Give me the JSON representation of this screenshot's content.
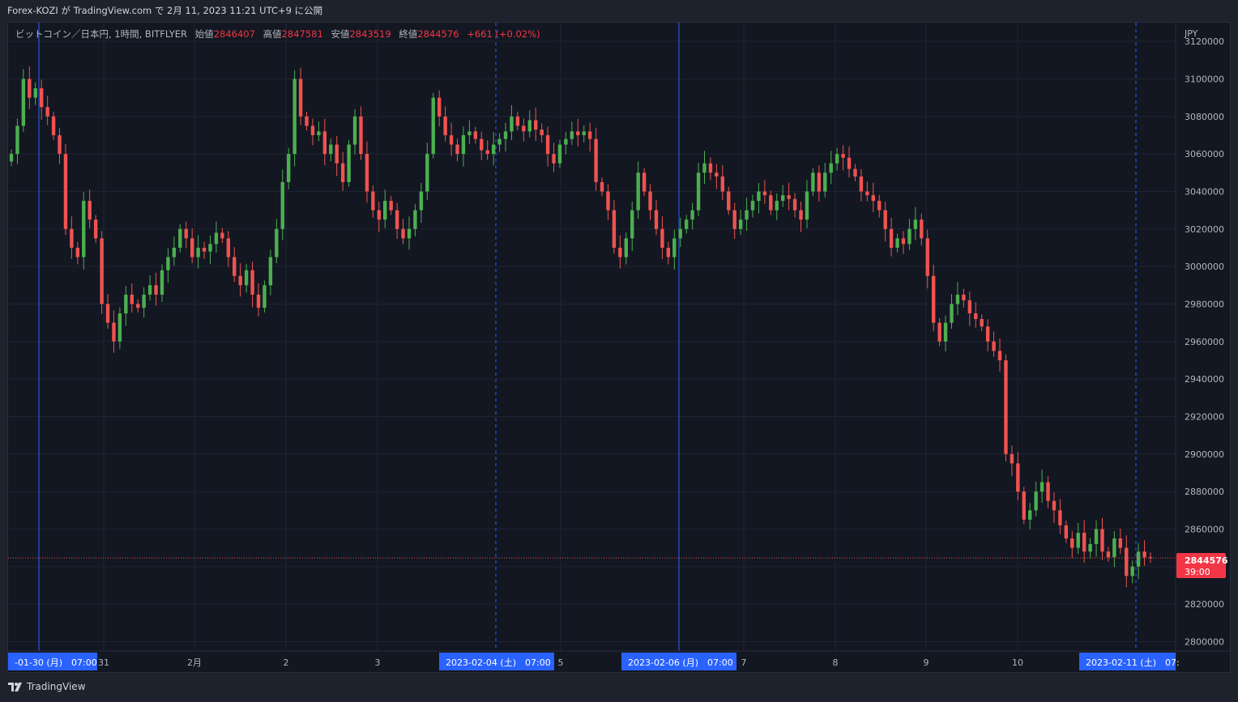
{
  "header": {
    "publish_text": "Forex-KOZI が TradingView.com で 2月 11, 2023 11:21 UTC+9 に公開"
  },
  "legend": {
    "symbol": "ビットコイン／日本円, 1時間, BITFLYER",
    "open_label": "始値",
    "open": "2846407",
    "high_label": "高値",
    "high": "2847581",
    "low_label": "安値",
    "low": "2843519",
    "close_label": "終値",
    "close": "2844576",
    "change": "+661 (+0.02%)"
  },
  "price_axis": {
    "currency": "JPY",
    "ticks": [
      "3120000",
      "3100000",
      "3080000",
      "3060000",
      "3040000",
      "3020000",
      "3000000",
      "2980000",
      "2960000",
      "2940000",
      "2920000",
      "2900000",
      "2880000",
      "2860000",
      "2840000",
      "2820000",
      "2800000"
    ],
    "last_price": "2844576",
    "countdown": "39:00"
  },
  "time_axis": {
    "labels": [
      "31",
      "2月",
      "2",
      "3",
      "5",
      "7",
      "8",
      "9",
      "10"
    ],
    "highlights": [
      "-01-30 (月)　07:00",
      "2023-02-04 (土)　07:00",
      "2023-02-06 (月)　07:00",
      "2023-02-11 (土)　07:"
    ]
  },
  "footer": {
    "brand": "TradingView"
  },
  "colors": {
    "up": "#26a69a",
    "up_body": "#4caf50",
    "down": "#ef5350",
    "background": "#131722",
    "grid": "#1f2433",
    "highlight": "#2962ff",
    "last_price_badge": "#f23645"
  },
  "chart_data": {
    "type": "candlestick",
    "interval": "1h",
    "ylim": [
      2795000,
      3130000
    ],
    "series_closes": [
      3060000,
      3075000,
      3100000,
      3090000,
      3095000,
      3085000,
      3080000,
      3070000,
      3060000,
      3020000,
      3010000,
      3005000,
      3035000,
      3025000,
      3015000,
      2980000,
      2970000,
      2960000,
      2975000,
      2985000,
      2980000,
      2978000,
      2985000,
      2990000,
      2985000,
      2998000,
      3005000,
      3010000,
      3020000,
      3015000,
      3005000,
      3010000,
      3008000,
      3012000,
      3018000,
      3015000,
      3005000,
      2995000,
      2990000,
      2998000,
      2985000,
      2978000,
      2990000,
      3005000,
      3020000,
      3045000,
      3060000,
      3100000,
      3080000,
      3075000,
      3070000,
      3072000,
      3060000,
      3065000,
      3055000,
      3045000,
      3065000,
      3080000,
      3060000,
      3040000,
      3030000,
      3025000,
      3035000,
      3030000,
      3020000,
      3015000,
      3020000,
      3030000,
      3040000,
      3060000,
      3090000,
      3080000,
      3070000,
      3065000,
      3060000,
      3070000,
      3072000,
      3068000,
      3062000,
      3060000,
      3065000,
      3068000,
      3072000,
      3080000,
      3075000,
      3072000,
      3078000,
      3073000,
      3070000,
      3060000,
      3055000,
      3065000,
      3068000,
      3072000,
      3070000,
      3072000,
      3068000,
      3045000,
      3040000,
      3030000,
      3010000,
      3005000,
      3015000,
      3030000,
      3050000,
      3040000,
      3030000,
      3020000,
      3010000,
      3005000,
      3015000,
      3020000,
      3025000,
      3030000,
      3050000,
      3055000,
      3050000,
      3048000,
      3040000,
      3030000,
      3020000,
      3025000,
      3030000,
      3035000,
      3040000,
      3038000,
      3030000,
      3035000,
      3038000,
      3036000,
      3030000,
      3025000,
      3040000,
      3050000,
      3040000,
      3050000,
      3055000,
      3060000,
      3058000,
      3052000,
      3048000,
      3040000,
      3038000,
      3035000,
      3030000,
      3020000,
      3010000,
      3015000,
      3012000,
      3020000,
      3025000,
      3015000,
      2995000,
      2970000,
      2960000,
      2970000,
      2980000,
      2985000,
      2982000,
      2975000,
      2972000,
      2968000,
      2960000,
      2955000,
      2950000,
      2900000,
      2895000,
      2880000,
      2865000,
      2870000,
      2880000,
      2885000,
      2875000,
      2870000,
      2862000,
      2855000,
      2850000,
      2858000,
      2848000,
      2852000,
      2860000,
      2848000,
      2845000,
      2855000,
      2850000,
      2835000,
      2840000,
      2848000,
      2845000,
      2844576
    ]
  }
}
